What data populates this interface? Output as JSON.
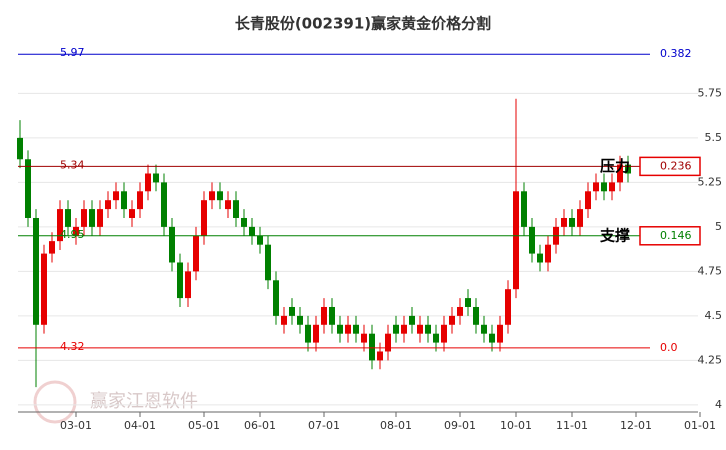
{
  "chart_data": {
    "type": "candlestick",
    "title": "长青股份(002391)赢家黄金价格分割",
    "watermark": "赢家江恩软件",
    "categories": [
      null,
      null,
      null,
      null,
      null,
      null,
      null,
      "03-01",
      null,
      null,
      null,
      null,
      null,
      null,
      null,
      "04-01",
      null,
      null,
      null,
      null,
      null,
      null,
      null,
      "05-01",
      null,
      null,
      null,
      null,
      null,
      null,
      "06-01",
      null,
      null,
      null,
      null,
      null,
      null,
      null,
      "07-01",
      null,
      null,
      null,
      null,
      null,
      null,
      null,
      null,
      "08-01",
      null,
      null,
      null,
      null,
      null,
      null,
      null,
      "09-01",
      null,
      null,
      null,
      null,
      null,
      null,
      "10-01",
      null,
      null,
      null,
      null,
      null,
      null,
      "11-01",
      null,
      null,
      null,
      null,
      null,
      null,
      null,
      "12-01",
      null,
      null,
      null,
      null,
      null,
      null,
      null,
      "01-01"
    ],
    "open": [
      5.5,
      5.38,
      5.05,
      4.45,
      4.85,
      4.92,
      5.1,
      4.95,
      5.0,
      5.1,
      5.0,
      5.1,
      5.15,
      5.2,
      5.05,
      5.1,
      5.2,
      5.3,
      5.25,
      5.0,
      4.8,
      4.6,
      4.75,
      4.95,
      5.15,
      5.2,
      5.1,
      5.15,
      5.05,
      5.0,
      4.95,
      4.9,
      4.7,
      4.45,
      4.55,
      4.5,
      4.45,
      4.35,
      4.45,
      4.55,
      4.45,
      4.4,
      4.45,
      4.35,
      4.4,
      4.25,
      4.3,
      4.45,
      4.4,
      4.5,
      4.4,
      4.45,
      4.4,
      4.35,
      4.45,
      4.5,
      4.6,
      4.55,
      4.45,
      4.4,
      4.35,
      4.45,
      4.65,
      5.2,
      5.0,
      4.85,
      4.8,
      4.9,
      5.0,
      5.05,
      5.0,
      5.1,
      5.2,
      5.25,
      5.2,
      5.25,
      5.35,
      null,
      null,
      null,
      null,
      null,
      null,
      null,
      null,
      null
    ],
    "close": [
      5.38,
      5.05,
      4.45,
      4.85,
      4.92,
      5.1,
      5.0,
      5.0,
      5.1,
      5.0,
      5.1,
      5.15,
      5.2,
      5.1,
      5.1,
      5.2,
      5.3,
      5.25,
      5.0,
      4.8,
      4.6,
      4.75,
      4.95,
      5.15,
      5.2,
      5.15,
      5.15,
      5.05,
      5.0,
      4.95,
      4.9,
      4.7,
      4.5,
      4.5,
      4.5,
      4.45,
      4.35,
      4.45,
      4.55,
      4.45,
      4.4,
      4.45,
      4.4,
      4.4,
      4.25,
      4.3,
      4.4,
      4.4,
      4.45,
      4.45,
      4.45,
      4.4,
      4.35,
      4.45,
      4.5,
      4.55,
      4.55,
      4.45,
      4.4,
      4.35,
      4.45,
      4.65,
      5.2,
      5.0,
      4.85,
      4.8,
      4.9,
      5.0,
      5.05,
      5.0,
      5.1,
      5.2,
      5.25,
      5.2,
      5.25,
      5.35,
      5.3,
      null,
      null,
      null,
      null,
      null,
      null,
      null,
      null,
      null
    ],
    "high": [
      5.6,
      5.43,
      5.1,
      4.9,
      4.97,
      5.15,
      5.15,
      5.05,
      5.15,
      5.15,
      5.15,
      5.2,
      5.25,
      5.25,
      5.15,
      5.25,
      5.35,
      5.35,
      5.3,
      5.05,
      4.85,
      4.8,
      5.0,
      5.2,
      5.25,
      5.25,
      5.2,
      5.2,
      5.1,
      5.05,
      5.0,
      4.95,
      4.75,
      4.55,
      4.6,
      4.55,
      4.5,
      4.5,
      4.6,
      4.6,
      4.5,
      4.5,
      4.5,
      4.45,
      4.45,
      4.35,
      4.45,
      4.5,
      4.5,
      4.55,
      4.5,
      4.5,
      4.45,
      4.5,
      4.55,
      4.6,
      4.65,
      4.6,
      4.5,
      4.45,
      4.5,
      4.7,
      5.72,
      5.25,
      5.05,
      4.9,
      4.95,
      5.05,
      5.1,
      5.1,
      5.15,
      5.25,
      5.3,
      5.3,
      5.3,
      5.4,
      5.4,
      null,
      null,
      null,
      null,
      null,
      null,
      null,
      null,
      null
    ],
    "low": [
      5.33,
      5.0,
      4.1,
      4.4,
      4.8,
      4.87,
      4.95,
      4.9,
      4.95,
      4.95,
      4.95,
      5.05,
      5.1,
      5.05,
      5.0,
      5.05,
      5.15,
      5.2,
      4.95,
      4.75,
      4.55,
      4.55,
      4.7,
      4.9,
      5.1,
      5.1,
      5.05,
      5.0,
      4.95,
      4.9,
      4.85,
      4.65,
      4.45,
      4.4,
      4.45,
      4.4,
      4.3,
      4.3,
      4.4,
      4.4,
      4.35,
      4.35,
      4.35,
      4.3,
      4.2,
      4.2,
      4.25,
      4.35,
      4.35,
      4.4,
      4.35,
      4.35,
      4.3,
      4.3,
      4.4,
      4.45,
      4.5,
      4.4,
      4.35,
      4.3,
      4.3,
      4.4,
      4.6,
      4.95,
      4.8,
      4.75,
      4.75,
      4.85,
      4.95,
      4.95,
      4.95,
      5.05,
      5.15,
      5.15,
      5.15,
      5.2,
      5.25,
      null,
      null,
      null,
      null,
      null,
      null,
      null,
      null,
      null
    ],
    "up_color": "#e60000",
    "down_color": "#008000",
    "ylim": [
      3.96,
      6.05
    ],
    "yticks": [
      4,
      4.25,
      4.5,
      4.75,
      5,
      5.25,
      5.5,
      5.75
    ],
    "grid": true,
    "levels": [
      {
        "value": 5.97,
        "ratio": "0.382",
        "color": "#0000cc",
        "boxed": false
      },
      {
        "value": 5.34,
        "ratio": "0.236",
        "color": "#a00000",
        "boxed": true,
        "note": "压力"
      },
      {
        "value": 4.95,
        "ratio": "0.146",
        "color": "#008000",
        "boxed": true,
        "note": "支撑"
      },
      {
        "value": 4.32,
        "ratio": "0.0",
        "color": "#e60000",
        "boxed": false
      }
    ]
  }
}
